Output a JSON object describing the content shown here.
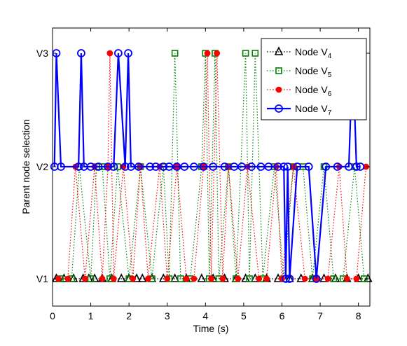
{
  "chart_data": {
    "type": "line",
    "title": "",
    "xlabel": "Time (s)",
    "ylabel": "Parent node selection",
    "xlim": [
      0,
      8.3
    ],
    "xticks": [
      0,
      1,
      2,
      3,
      4,
      5,
      6,
      7,
      8
    ],
    "y_levels": [
      "V1",
      "V2",
      "V3"
    ],
    "grid": false,
    "legend_position": "top-right",
    "series": [
      {
        "name": "Node V4",
        "legend_base": "Node V",
        "legend_sub": "4",
        "color": "#000000",
        "marker": "triangle",
        "linestyle": "dotted",
        "x": [
          0.1,
          0.3,
          0.55,
          0.8,
          0.95,
          1.1,
          1.3,
          1.55,
          1.8,
          2.0,
          2.2,
          2.35,
          2.6,
          2.9,
          3.2,
          3.5,
          3.9,
          4.2,
          4.5,
          4.8,
          5.05,
          5.3,
          5.6,
          5.9,
          6.2,
          6.5,
          6.8,
          7.1,
          7.4,
          7.7,
          8.0,
          8.25
        ],
        "y": [
          "V1",
          "V1",
          "V1",
          "V1",
          "V1",
          "V1",
          "V1",
          "V1",
          "V1",
          "V1",
          "V1",
          "V1",
          "V1",
          "V1",
          "V1",
          "V1",
          "V1",
          "V1",
          "V1",
          "V1",
          "V1",
          "V1",
          "V1",
          "V1",
          "V1",
          "V1",
          "V1",
          "V1",
          "V1",
          "V1",
          "V1",
          "V1"
        ]
      },
      {
        "name": "Node V5",
        "legend_base": "Node V",
        "legend_sub": "5",
        "color": "#008000",
        "marker": "square",
        "linestyle": "dotted",
        "x": [
          0.2,
          0.5,
          0.7,
          1.0,
          1.15,
          1.3,
          1.5,
          1.7,
          2.0,
          2.3,
          2.6,
          2.9,
          3.05,
          3.2,
          3.35,
          3.6,
          3.9,
          4.0,
          4.1,
          4.25,
          4.35,
          4.6,
          4.8,
          5.05,
          5.15,
          5.3,
          5.5,
          5.8,
          6.05,
          6.3,
          6.55,
          6.8,
          7.1,
          7.35,
          7.6,
          7.9,
          8.15
        ],
        "y": [
          "V1",
          "V1",
          "V2",
          "V1",
          "V2",
          "V2",
          "V1",
          "V2",
          "V1",
          "V2",
          "V1",
          "V2",
          "V1",
          "V3",
          "V1",
          "V1",
          "V2",
          "V3",
          "V1",
          "V3",
          "V1",
          "V2",
          "V1",
          "V3",
          "V1",
          "V3",
          "V1",
          "V2",
          "V1",
          "V2",
          "V2",
          "V1",
          "V2",
          "V1",
          "V1",
          "V2",
          "V1"
        ]
      },
      {
        "name": "Node V6",
        "legend_base": "Node V",
        "legend_sub": "6",
        "color": "#ff0000",
        "marker": "dot",
        "linestyle": "dotted",
        "x": [
          0.15,
          0.4,
          0.6,
          0.85,
          1.1,
          1.3,
          1.45,
          1.5,
          1.6,
          1.85,
          2.1,
          2.3,
          2.5,
          2.8,
          3.0,
          3.25,
          3.5,
          3.7,
          3.95,
          4.05,
          4.15,
          4.3,
          4.45,
          4.6,
          4.85,
          5.1,
          5.4,
          5.6,
          5.85,
          6.0,
          6.3,
          6.6,
          6.9,
          7.2,
          7.5,
          7.7,
          7.95,
          8.2
        ],
        "y": [
          "V1",
          "V1",
          "V2",
          "V1",
          "V2",
          "V1",
          "V2",
          "V3",
          "V1",
          "V2",
          "V1",
          "V2",
          "V1",
          "V2",
          "V1",
          "V2",
          "V1",
          "V1",
          "V2",
          "V3",
          "V1",
          "V3",
          "V1",
          "V2",
          "V1",
          "V2",
          "V1",
          "V1",
          "V2",
          "V1",
          "V2",
          "V1",
          "V1",
          "V1",
          "V2",
          "V1",
          "V1",
          "V2"
        ]
      },
      {
        "name": "Node V7",
        "legend_base": "Node V",
        "legend_sub": "7",
        "color": "#0000ff",
        "marker": "circle",
        "linestyle": "solid",
        "x": [
          0.05,
          0.1,
          0.22,
          0.68,
          0.75,
          0.82,
          1.0,
          1.2,
          1.45,
          1.6,
          1.72,
          1.9,
          1.98,
          2.05,
          2.25,
          2.55,
          2.7,
          2.9,
          3.05,
          3.25,
          3.45,
          3.7,
          3.95,
          4.2,
          4.5,
          4.75,
          4.95,
          5.2,
          5.45,
          5.65,
          5.9,
          6.05,
          6.1,
          6.15,
          6.2,
          6.4,
          6.7,
          6.9,
          7.15,
          7.45,
          7.75,
          7.85,
          7.95,
          8.05
        ],
        "y": [
          "V2",
          "V3",
          "V2",
          "V2",
          "V3",
          "V2",
          "V2",
          "V2",
          "V2",
          "V2",
          "V3",
          "V2",
          "V3",
          "V2",
          "V2",
          "V2",
          "V2",
          "V2",
          "V2",
          "V2",
          "V2",
          "V2",
          "V2",
          "V2",
          "V2",
          "V2",
          "V2",
          "V2",
          "V2",
          "V2",
          "V2",
          "V2",
          "V1",
          "V2",
          "V1",
          "V2",
          "V2",
          "V1",
          "V2",
          "V2",
          "V2",
          "V3",
          "V2",
          "V2"
        ]
      }
    ]
  }
}
